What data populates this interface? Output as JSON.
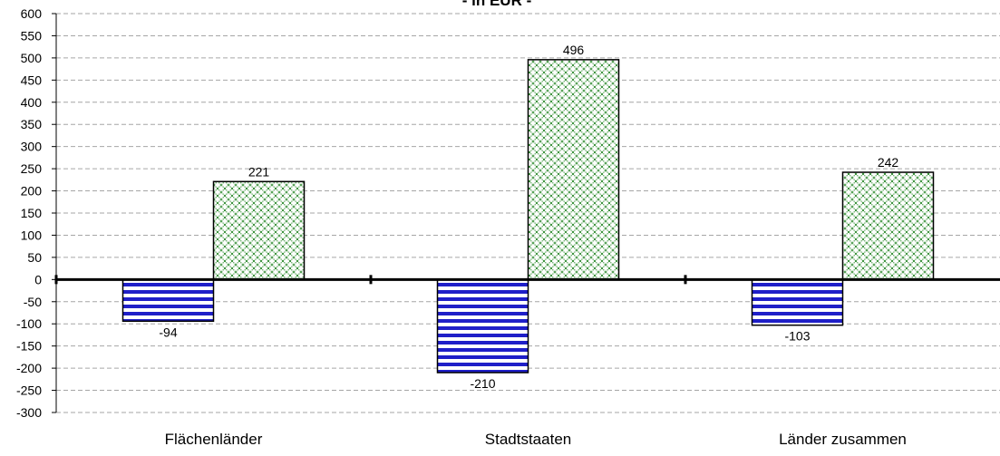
{
  "chart_data": {
    "type": "bar",
    "title": "- in EUR -",
    "categories": [
      "Flächenländer",
      "Stadtstaaten",
      "Länder zusammen"
    ],
    "series": [
      {
        "values": [
          -94,
          -210,
          -103
        ],
        "color": "#1f1fc8",
        "fill_pattern": "horizontal-stripes"
      },
      {
        "values": [
          221,
          496,
          242
        ],
        "color": "#2e8b2e",
        "fill_pattern": "crosshatch"
      }
    ],
    "data_labels": [
      [
        "-94",
        "-210",
        "-103"
      ],
      [
        "221",
        "496",
        "242"
      ]
    ],
    "ylim": [
      -300,
      600
    ],
    "ytick_step": 50,
    "grid": true,
    "legend": "none"
  }
}
